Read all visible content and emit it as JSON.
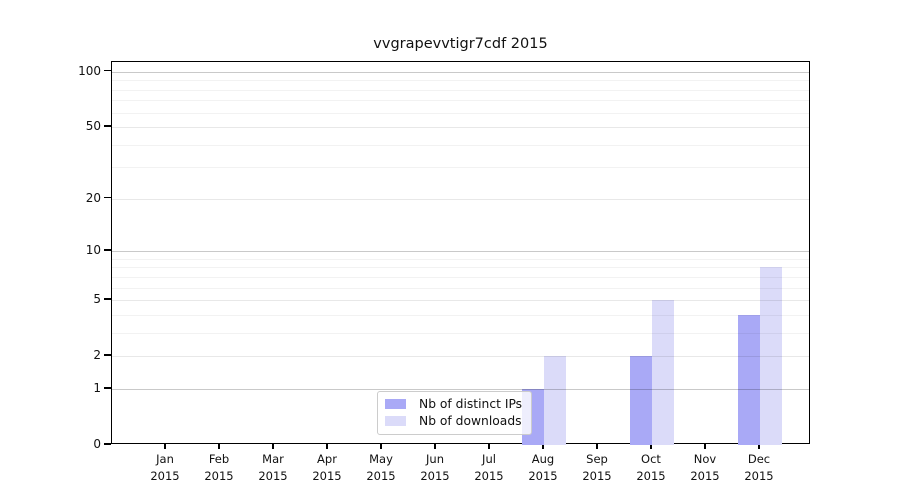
{
  "title": "vvgrapevvtigr7cdf 2015",
  "chart_data": {
    "type": "bar",
    "title": "vvgrapevvtigr7cdf 2015",
    "categories": [
      "Jan",
      "Feb",
      "Mar",
      "Apr",
      "May",
      "Jun",
      "Jul",
      "Aug",
      "Sep",
      "Oct",
      "Nov",
      "Dec"
    ],
    "category_year": "2015",
    "series": [
      {
        "name": "Nb of distinct IPs",
        "color": "#a9a9f6",
        "values": [
          0,
          0,
          0,
          0,
          0,
          0,
          0,
          1,
          0,
          2,
          0,
          4
        ]
      },
      {
        "name": "Nb of downloads",
        "color": "#dbdbf9",
        "values": [
          0,
          0,
          0,
          0,
          0,
          0,
          0,
          2,
          0,
          5,
          0,
          8
        ]
      }
    ],
    "xlabel": "",
    "ylabel": "",
    "y_scale": "symlog-like: position proportional to log10(1+v)",
    "y_ticks_labeled": [
      0,
      1,
      2,
      5,
      10,
      20,
      50,
      100
    ],
    "y_ticks_minor": [
      3,
      4,
      6,
      7,
      8,
      9,
      30,
      40,
      60,
      70,
      80,
      90
    ],
    "ylim": [
      0,
      113
    ],
    "grid": "horizontal",
    "legend_position": "lower center inside axes",
    "background": "#ffffff",
    "axis_color": "#000000"
  },
  "legend": {
    "entries": [
      {
        "label": "Nb of distinct IPs",
        "color": "#a9a9f6"
      },
      {
        "label": "Nb of downloads",
        "color": "#dbdbf9"
      }
    ]
  }
}
